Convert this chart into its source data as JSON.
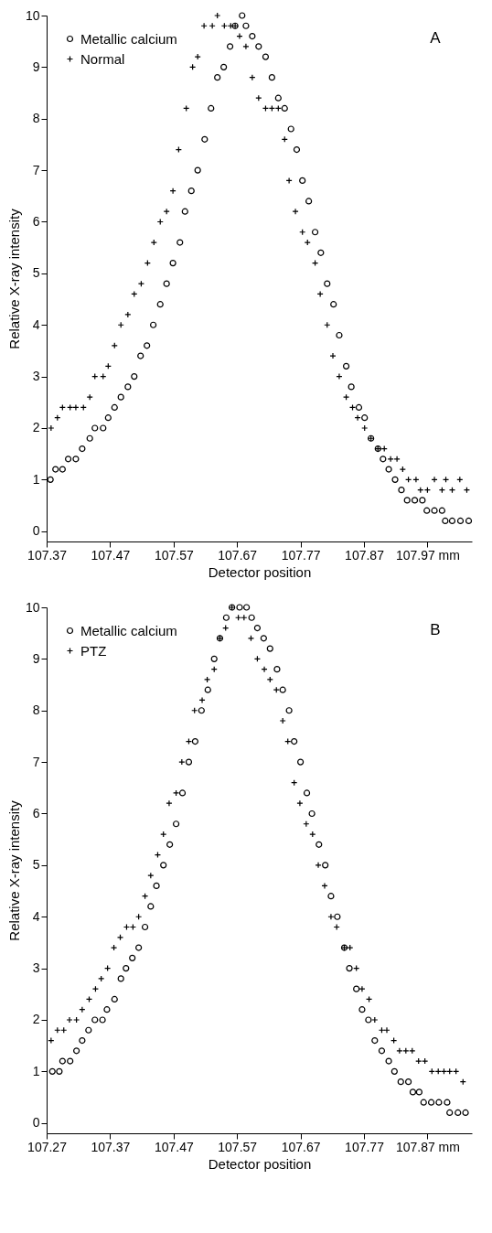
{
  "chart_data": [
    {
      "type": "scatter",
      "xlabel": "Detector position",
      "ylabel": "Relative X-ray intensity",
      "annotations": [
        "A"
      ],
      "legend": "top left",
      "grid": false,
      "xlim": [
        107.37,
        108.04
      ],
      "xticks": [
        107.37,
        107.47,
        107.57,
        107.67,
        107.77,
        107.87,
        {
          "value": 107.97,
          "label": "107.97 mm"
        }
      ],
      "ylim": [
        -0.2,
        10
      ],
      "yticks": [
        0,
        1,
        2,
        3,
        4,
        5,
        6,
        7,
        8,
        9,
        10
      ],
      "series": [
        {
          "name": "Metallic calcium",
          "color": "#000000",
          "marker": "circle",
          "x": [
            107.376,
            107.384,
            107.395,
            107.404,
            107.416,
            107.426,
            107.438,
            107.446,
            107.459,
            107.467,
            107.477,
            107.487,
            107.498,
            107.508,
            107.518,
            107.528,
            107.538,
            107.549,
            107.559,
            107.569,
            107.58,
            107.588,
            107.598,
            107.608,
            107.619,
            107.629,
            107.639,
            107.649,
            107.659,
            107.667,
            107.678,
            107.684,
            107.694,
            107.704,
            107.715,
            107.725,
            107.735,
            107.745,
            107.755,
            107.764,
            107.773,
            107.783,
            107.793,
            107.802,
            107.812,
            107.822,
            107.831,
            107.842,
            107.85,
            107.862,
            107.871,
            107.881,
            107.892,
            107.9,
            107.909,
            107.919,
            107.929,
            107.938,
            107.95,
            107.962,
            107.969,
            107.981,
            107.993,
            107.998,
            108.009,
            108.022,
            108.035
          ],
          "values": [
            1.0,
            1.2,
            1.2,
            1.4,
            1.4,
            1.6,
            1.8,
            2.0,
            2.0,
            2.2,
            2.4,
            2.6,
            2.8,
            3.0,
            3.4,
            3.6,
            4.0,
            4.4,
            4.8,
            5.2,
            5.6,
            6.2,
            6.6,
            7.0,
            7.6,
            8.2,
            8.8,
            9.0,
            9.4,
            9.8,
            10.0,
            9.8,
            9.6,
            9.4,
            9.2,
            8.8,
            8.4,
            8.2,
            7.8,
            7.4,
            6.8,
            6.4,
            5.8,
            5.4,
            4.8,
            4.4,
            3.8,
            3.2,
            2.8,
            2.4,
            2.2,
            1.8,
            1.6,
            1.4,
            1.2,
            1.0,
            0.8,
            0.6,
            0.6,
            0.6,
            0.4,
            0.4,
            0.4,
            0.2,
            0.2,
            0.2,
            0.2
          ]
        },
        {
          "name": "Normal",
          "color": "#000000",
          "marker": "cross",
          "x": [
            107.377,
            107.387,
            107.395,
            107.407,
            107.416,
            107.428,
            107.438,
            107.446,
            107.459,
            107.467,
            107.477,
            107.487,
            107.498,
            107.508,
            107.519,
            107.529,
            107.539,
            107.549,
            107.559,
            107.569,
            107.578,
            107.59,
            107.6,
            107.608,
            107.618,
            107.631,
            107.639,
            107.65,
            107.66,
            107.667,
            107.674,
            107.684,
            107.694,
            107.704,
            107.715,
            107.725,
            107.735,
            107.745,
            107.752,
            107.762,
            107.773,
            107.781,
            107.793,
            107.801,
            107.812,
            107.821,
            107.831,
            107.842,
            107.852,
            107.86,
            107.871,
            107.881,
            107.892,
            107.902,
            107.912,
            107.922,
            107.931,
            107.94,
            107.952,
            107.959,
            107.97,
            107.981,
            107.993,
            107.999,
            108.009,
            108.021,
            108.032
          ],
          "values": [
            2.0,
            2.2,
            2.4,
            2.4,
            2.4,
            2.4,
            2.6,
            3.0,
            3.0,
            3.2,
            3.6,
            4.0,
            4.2,
            4.6,
            4.8,
            5.2,
            5.6,
            6.0,
            6.2,
            6.6,
            7.4,
            8.2,
            9.0,
            9.2,
            9.8,
            9.8,
            10.0,
            9.8,
            9.8,
            9.8,
            9.6,
            9.4,
            8.8,
            8.4,
            8.2,
            8.2,
            8.2,
            7.6,
            6.8,
            6.2,
            5.8,
            5.6,
            5.2,
            4.6,
            4.0,
            3.4,
            3.0,
            2.6,
            2.4,
            2.2,
            2.0,
            1.8,
            1.6,
            1.6,
            1.4,
            1.4,
            1.2,
            1.0,
            1.0,
            0.8,
            0.8,
            1.0,
            0.8,
            1.0,
            0.8,
            1.0,
            0.8
          ]
        }
      ]
    },
    {
      "type": "scatter",
      "xlabel": "Detector position",
      "ylabel": "Relative X-ray intensity",
      "annotations": [
        "B"
      ],
      "legend": "top left",
      "grid": false,
      "xlim": [
        107.27,
        107.94
      ],
      "xticks": [
        107.27,
        107.37,
        107.47,
        107.57,
        107.67,
        107.77,
        {
          "value": 107.87,
          "label": "107.87 mm"
        }
      ],
      "ylim": [
        -0.2,
        10
      ],
      "yticks": [
        0,
        1,
        2,
        3,
        4,
        5,
        6,
        7,
        8,
        9,
        10
      ],
      "series": [
        {
          "name": "Metallic calcium",
          "color": "#000000",
          "marker": "circle",
          "x": [
            107.279,
            107.29,
            107.295,
            107.307,
            107.317,
            107.326,
            107.336,
            107.346,
            107.358,
            107.365,
            107.377,
            107.387,
            107.395,
            107.405,
            107.415,
            107.425,
            107.434,
            107.443,
            107.454,
            107.464,
            107.474,
            107.484,
            107.494,
            107.504,
            107.514,
            107.524,
            107.534,
            107.543,
            107.553,
            107.562,
            107.574,
            107.585,
            107.593,
            107.602,
            107.612,
            107.622,
            107.633,
            107.642,
            107.652,
            107.66,
            107.67,
            107.68,
            107.688,
            107.699,
            107.709,
            107.718,
            107.728,
            107.739,
            107.747,
            107.758,
            107.767,
            107.777,
            107.787,
            107.798,
            107.809,
            107.818,
            107.828,
            107.84,
            107.847,
            107.857,
            107.864,
            107.876,
            107.888,
            107.901,
            107.905,
            107.918,
            107.93
          ],
          "values": [
            1.0,
            1.0,
            1.2,
            1.2,
            1.4,
            1.6,
            1.8,
            2.0,
            2.0,
            2.2,
            2.4,
            2.8,
            3.0,
            3.2,
            3.4,
            3.8,
            4.2,
            4.6,
            5.0,
            5.4,
            5.8,
            6.4,
            7.0,
            7.4,
            8.0,
            8.4,
            9.0,
            9.4,
            9.8,
            10.0,
            10.0,
            10.0,
            9.8,
            9.6,
            9.4,
            9.2,
            8.8,
            8.4,
            8.0,
            7.4,
            7.0,
            6.4,
            6.0,
            5.4,
            5.0,
            4.4,
            4.0,
            3.4,
            3.0,
            2.6,
            2.2,
            2.0,
            1.6,
            1.4,
            1.2,
            1.0,
            0.8,
            0.8,
            0.6,
            0.6,
            0.4,
            0.4,
            0.4,
            0.4,
            0.2,
            0.2,
            0.2
          ]
        },
        {
          "name": "PTZ",
          "color": "#000000",
          "marker": "cross",
          "x": [
            107.277,
            107.287,
            107.297,
            107.306,
            107.317,
            107.326,
            107.337,
            107.347,
            107.356,
            107.366,
            107.376,
            107.386,
            107.396,
            107.406,
            107.415,
            107.425,
            107.434,
            107.445,
            107.454,
            107.463,
            107.474,
            107.483,
            107.494,
            107.503,
            107.515,
            107.523,
            107.534,
            107.543,
            107.552,
            107.562,
            107.572,
            107.581,
            107.592,
            107.602,
            107.613,
            107.622,
            107.632,
            107.642,
            107.65,
            107.66,
            107.669,
            107.679,
            107.689,
            107.698,
            107.708,
            107.718,
            107.727,
            107.739,
            107.748,
            107.758,
            107.767,
            107.778,
            107.787,
            107.798,
            107.806,
            107.817,
            107.826,
            107.836,
            107.846,
            107.856,
            107.866,
            107.877,
            107.887,
            107.896,
            107.905,
            107.915,
            107.926
          ],
          "values": [
            1.6,
            1.8,
            1.8,
            2.0,
            2.0,
            2.2,
            2.4,
            2.6,
            2.8,
            3.0,
            3.4,
            3.6,
            3.8,
            3.8,
            4.0,
            4.4,
            4.8,
            5.2,
            5.6,
            6.2,
            6.4,
            7.0,
            7.4,
            8.0,
            8.2,
            8.6,
            8.8,
            9.4,
            9.6,
            10.0,
            9.8,
            9.8,
            9.4,
            9.0,
            8.8,
            8.6,
            8.4,
            7.8,
            7.4,
            6.6,
            6.2,
            5.8,
            5.6,
            5.0,
            4.6,
            4.0,
            3.8,
            3.4,
            3.4,
            3.0,
            2.6,
            2.4,
            2.0,
            1.8,
            1.8,
            1.6,
            1.4,
            1.4,
            1.4,
            1.2,
            1.2,
            1.0,
            1.0,
            1.0,
            1.0,
            1.0,
            0.8
          ]
        }
      ]
    }
  ]
}
